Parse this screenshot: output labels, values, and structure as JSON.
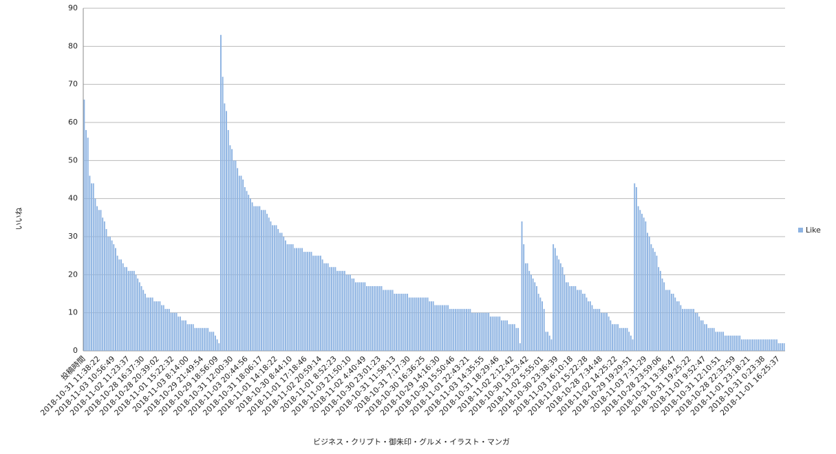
{
  "chart_data": {
    "type": "bar",
    "y_label": "いいね",
    "x_label": "ビジネス・クリプト・御朱印・グルメ・イラスト・マンガ",
    "legend_position": "right",
    "grid": true,
    "ylim": [
      0,
      90
    ],
    "yticks": [
      0,
      10,
      20,
      30,
      40,
      50,
      60,
      70,
      80,
      90
    ],
    "categories": [
      "投稿時間",
      null,
      null,
      null,
      null,
      null,
      null,
      null,
      "2018-10-31 11:38:22",
      null,
      null,
      null,
      null,
      null,
      null,
      null,
      "2018-11-03 10:56:49",
      null,
      null,
      null,
      null,
      null,
      null,
      null,
      "2018-11-02 11:23:37",
      null,
      null,
      null,
      null,
      null,
      null,
      null,
      "2018-10-28 16:37:30",
      null,
      null,
      null,
      null,
      null,
      null,
      null,
      "2018-10-28 20:39:02",
      null,
      null,
      null,
      null,
      null,
      null,
      null,
      "2018-11-01 15:22:32",
      null,
      null,
      null,
      null,
      null,
      null,
      null,
      "2018-11-03 8:14:00",
      null,
      null,
      null,
      null,
      null,
      null,
      null,
      "2018-10-29 21:49:54",
      null,
      null,
      null,
      null,
      null,
      null,
      null,
      "2018-10-29 18:56:09",
      null,
      null,
      null,
      null,
      null,
      null,
      null,
      "2018-10-31 12:00:30",
      null,
      null,
      null,
      null,
      null,
      null,
      null,
      "2018-11-03 20:44:56",
      null,
      null,
      null,
      null,
      null,
      null,
      null,
      "2018-10-31 18:06:17",
      null,
      null,
      null,
      null,
      null,
      null,
      null,
      "2018-11-01 14:18:22",
      null,
      null,
      null,
      null,
      null,
      null,
      null,
      "2018-10-30 8:44:10",
      null,
      null,
      null,
      null,
      null,
      null,
      null,
      "2018-11-01 17:18:46",
      null,
      null,
      null,
      null,
      null,
      null,
      null,
      "2018-11-02 20:59:14",
      null,
      null,
      null,
      null,
      null,
      null,
      null,
      "2018-11-01 8:52:23",
      null,
      null,
      null,
      null,
      null,
      null,
      null,
      "2018-11-03 21:50:10",
      null,
      null,
      null,
      null,
      null,
      null,
      null,
      "2018-11-02 4:40:49",
      null,
      null,
      null,
      null,
      null,
      null,
      null,
      "2018-10-30 23:01:23",
      null,
      null,
      null,
      null,
      null,
      null,
      null,
      "2018-10-31 11:58:13",
      null,
      null,
      null,
      null,
      null,
      null,
      null,
      "2018-10-31 7:17:30",
      null,
      null,
      null,
      null,
      null,
      null,
      null,
      "2018-10-30 16:36:25",
      null,
      null,
      null,
      null,
      null,
      null,
      null,
      "2018-10-29 14:16:30",
      null,
      null,
      null,
      null,
      null,
      null,
      null,
      "2018-10-30 15:50:46",
      null,
      null,
      null,
      null,
      null,
      null,
      null,
      "2018-11-01 22:43:21",
      null,
      null,
      null,
      null,
      null,
      null,
      null,
      "2018-11-03 14:35:55",
      null,
      null,
      null,
      null,
      null,
      null,
      null,
      "2018-10-31 18:29:46",
      null,
      null,
      null,
      null,
      null,
      null,
      null,
      "2018-11-02 2:12:42",
      null,
      null,
      null,
      null,
      null,
      null,
      null,
      "2018-10-30 13:23:42",
      null,
      null,
      null,
      null,
      null,
      null,
      null,
      "2018-11-02 5:55:01",
      null,
      null,
      null,
      null,
      null,
      null,
      null,
      "2018-10-30 23:38:39",
      null,
      null,
      null,
      null,
      null,
      null,
      null,
      "2018-11-03 16:10:18",
      null,
      null,
      null,
      null,
      null,
      null,
      null,
      "2018-11-02 15:22:28",
      null,
      null,
      null,
      null,
      null,
      null,
      null,
      "2018-10-28 7:34:48",
      null,
      null,
      null,
      null,
      null,
      null,
      null,
      "2018-11-02 14:25:22",
      null,
      null,
      null,
      null,
      null,
      null,
      null,
      "2018-10-29 19:29:51",
      null,
      null,
      null,
      null,
      null,
      null,
      null,
      "2018-11-03 7:31:29",
      null,
      null,
      null,
      null,
      null,
      null,
      null,
      "2018-10-28 23:59:06",
      null,
      null,
      null,
      null,
      null,
      null,
      null,
      "2018-10-31 13:36:47",
      null,
      null,
      null,
      null,
      null,
      null,
      null,
      "2018-10-31 19:25:22",
      null,
      null,
      null,
      null,
      null,
      null,
      null,
      "2018-11-01 9:52:47",
      null,
      null,
      null,
      null,
      null,
      null,
      null,
      "2018-10-31 12:10:51",
      null,
      null,
      null,
      null,
      null,
      null,
      null,
      "2018-10-28 22:32:59",
      null,
      null,
      null,
      null,
      null,
      null,
      null,
      "2018-11-01 23:18:21",
      null,
      null,
      null,
      null,
      null,
      null,
      null,
      "2018-10-31 0:23:38",
      null,
      null,
      null,
      null,
      null,
      null,
      null,
      "2018-11-01 16:25:37",
      null,
      null,
      null
    ],
    "series": [
      {
        "name": "Like",
        "color": "#8db3e2",
        "values": [
          66,
          58,
          56,
          46,
          44,
          44,
          40,
          38,
          37,
          37,
          35,
          34,
          32,
          30,
          30,
          29,
          28,
          27,
          25,
          24,
          24,
          23,
          22,
          22,
          21,
          21,
          21,
          21,
          20,
          19,
          18,
          17,
          16,
          15,
          14,
          14,
          14,
          14,
          13,
          13,
          13,
          13,
          12,
          12,
          11,
          11,
          11,
          10,
          10,
          10,
          10,
          9,
          9,
          8,
          8,
          8,
          7,
          7,
          7,
          7,
          6,
          6,
          6,
          6,
          6,
          6,
          6,
          6,
          5,
          5,
          5,
          4,
          3,
          2,
          83,
          72,
          65,
          63,
          58,
          54,
          53,
          50,
          50,
          48,
          46,
          46,
          45,
          43,
          42,
          41,
          40,
          39,
          38,
          38,
          38,
          38,
          37,
          37,
          37,
          36,
          35,
          34,
          33,
          33,
          33,
          32,
          31,
          31,
          30,
          29,
          28,
          28,
          28,
          28,
          27,
          27,
          27,
          27,
          27,
          26,
          26,
          26,
          26,
          26,
          25,
          25,
          25,
          25,
          25,
          24,
          23,
          23,
          23,
          22,
          22,
          22,
          22,
          21,
          21,
          21,
          21,
          21,
          20,
          20,
          20,
          19,
          19,
          18,
          18,
          18,
          18,
          18,
          18,
          17,
          17,
          17,
          17,
          17,
          17,
          17,
          17,
          17,
          16,
          16,
          16,
          16,
          16,
          16,
          15,
          15,
          15,
          15,
          15,
          15,
          15,
          15,
          14,
          14,
          14,
          14,
          14,
          14,
          14,
          14,
          14,
          14,
          14,
          13,
          13,
          13,
          12,
          12,
          12,
          12,
          12,
          12,
          12,
          12,
          11,
          11,
          11,
          11,
          11,
          11,
          11,
          11,
          11,
          11,
          11,
          11,
          10,
          10,
          10,
          10,
          10,
          10,
          10,
          10,
          10,
          10,
          9,
          9,
          9,
          9,
          9,
          9,
          8,
          8,
          8,
          8,
          7,
          7,
          7,
          7,
          6,
          6,
          2,
          34,
          28,
          23,
          23,
          21,
          20,
          19,
          18,
          17,
          15,
          14,
          13,
          11,
          5,
          5,
          4,
          3,
          28,
          27,
          25,
          24,
          23,
          22,
          20,
          18,
          18,
          17,
          17,
          17,
          17,
          16,
          16,
          16,
          15,
          15,
          14,
          13,
          13,
          12,
          11,
          11,
          11,
          11,
          10,
          10,
          10,
          10,
          9,
          8,
          7,
          7,
          7,
          7,
          6,
          6,
          6,
          6,
          6,
          5,
          4,
          3,
          44,
          43,
          38,
          37,
          36,
          35,
          34,
          31,
          30,
          28,
          27,
          26,
          25,
          22,
          21,
          19,
          18,
          16,
          16,
          16,
          15,
          15,
          14,
          13,
          13,
          12,
          11,
          11,
          11,
          11,
          11,
          11,
          11,
          10,
          10,
          9,
          8,
          8,
          7,
          7,
          6,
          6,
          6,
          6,
          5,
          5,
          5,
          5,
          5,
          4,
          4,
          4,
          4,
          4,
          4,
          4,
          4,
          4,
          3,
          3,
          3,
          3,
          3,
          3,
          3,
          3,
          3,
          3,
          3,
          3,
          3,
          3,
          3,
          3,
          3,
          3,
          3,
          3,
          2,
          2,
          2,
          2
        ]
      }
    ]
  }
}
